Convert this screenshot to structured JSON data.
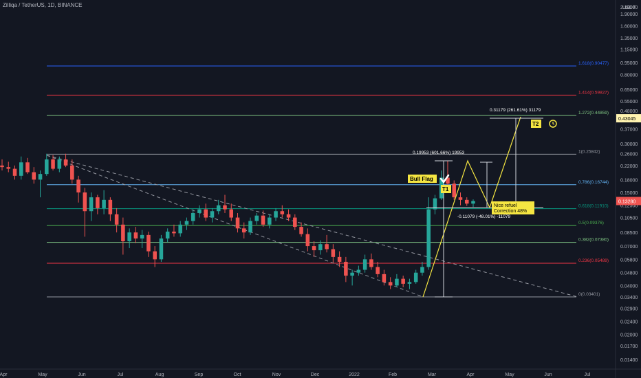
{
  "header": {
    "symbol": "Zilliqa / TetherUS",
    "interval": "1D",
    "exchange": "BINANCE"
  },
  "colors": {
    "background": "#131722",
    "up": "#26a69a",
    "down": "#ef5350",
    "axis_text": "#b2b5be",
    "trend": "#9598a1",
    "annotation": "#f5e642",
    "white": "#d1d4dc"
  },
  "chart_data": {
    "type": "candlestick",
    "y_scale": "log",
    "y_axis_unit": "USDT",
    "y_ticks": [
      "2.10000",
      "1.90000",
      "1.60000",
      "1.35000",
      "1.15000",
      "0.95000",
      "0.80000",
      "0.65000",
      "0.55000",
      "0.48000",
      "0.37000",
      "0.30000",
      "0.26000",
      "0.22000",
      "0.18000",
      "0.15000",
      "0.12500",
      "0.10500",
      "0.08500",
      "0.07000",
      "0.05800",
      "0.04800",
      "0.04000",
      "0.03400",
      "0.02900",
      "0.02400",
      "0.02000",
      "0.01700",
      "0.01400"
    ],
    "x_ticks": [
      "Apr",
      "May",
      "Jun",
      "Jul",
      "Aug",
      "Sep",
      "Oct",
      "Nov",
      "Dec",
      "2022",
      "Feb",
      "Mar",
      "Apr",
      "May",
      "Jun",
      "Jul"
    ],
    "current_price": "0.13280",
    "price_tag_level": "0.43045",
    "fib_levels": [
      {
        "label": "1.618(0.90477)",
        "value": 0.90477,
        "color": "#2962ff"
      },
      {
        "label": "1.414(0.59827)",
        "value": 0.59827,
        "color": "#f23645"
      },
      {
        "label": "1.272(0.44859)",
        "value": 0.44859,
        "color": "#81c784"
      },
      {
        "label": "1(0.25842)",
        "value": 0.25842,
        "color": "#9598a1"
      },
      {
        "label": "0.786(0.16744)",
        "value": 0.16744,
        "color": "#64b5f6"
      },
      {
        "label": "0.618(0.11910)",
        "value": 0.1191,
        "color": "#089981"
      },
      {
        "label": "0.5(0.09376)",
        "value": 0.09376,
        "color": "#4caf50"
      },
      {
        "label": "0.382(0.07380)",
        "value": 0.0738,
        "color": "#81c784"
      },
      {
        "label": "0.236(0.05489)",
        "value": 0.05489,
        "color": "#f23645"
      },
      {
        "label": "0(0.03401)",
        "value": 0.03401,
        "color": "#9598a1"
      }
    ],
    "annotations": {
      "bull_flag": "Bull Flag",
      "t1": "T1",
      "t2": "T2",
      "refuel_line1": "Nice refuel",
      "refuel_line2": "Correction 48%",
      "measure_up": "0.19953 (601.66%) 19953",
      "measure_down": "-0.11079 (-48.01%) -11079",
      "measure_target": "0.31179 (261.61%) 31179"
    },
    "candles": [
      [
        0.22,
        0.24,
        0.205,
        0.215
      ],
      [
        0.215,
        0.232,
        0.2,
        0.21
      ],
      [
        0.21,
        0.22,
        0.18,
        0.19
      ],
      [
        0.19,
        0.25,
        0.18,
        0.23
      ],
      [
        0.23,
        0.245,
        0.195,
        0.2
      ],
      [
        0.2,
        0.215,
        0.17,
        0.18
      ],
      [
        0.18,
        0.205,
        0.14,
        0.195
      ],
      [
        0.195,
        0.26,
        0.19,
        0.24
      ],
      [
        0.24,
        0.255,
        0.205,
        0.21
      ],
      [
        0.21,
        0.25,
        0.2,
        0.24
      ],
      [
        0.24,
        0.26,
        0.215,
        0.22
      ],
      [
        0.22,
        0.24,
        0.17,
        0.18
      ],
      [
        0.18,
        0.19,
        0.13,
        0.15
      ],
      [
        0.15,
        0.16,
        0.08,
        0.115
      ],
      [
        0.115,
        0.15,
        0.1,
        0.14
      ],
      [
        0.14,
        0.145,
        0.11,
        0.12
      ],
      [
        0.12,
        0.155,
        0.11,
        0.135
      ],
      [
        0.135,
        0.14,
        0.1,
        0.11
      ],
      [
        0.11,
        0.12,
        0.085,
        0.095
      ],
      [
        0.095,
        0.105,
        0.062,
        0.075
      ],
      [
        0.075,
        0.09,
        0.068,
        0.085
      ],
      [
        0.085,
        0.092,
        0.073,
        0.078
      ],
      [
        0.078,
        0.088,
        0.068,
        0.082
      ],
      [
        0.082,
        0.086,
        0.06,
        0.065
      ],
      [
        0.065,
        0.07,
        0.052,
        0.058
      ],
      [
        0.058,
        0.082,
        0.056,
        0.078
      ],
      [
        0.078,
        0.09,
        0.074,
        0.086
      ],
      [
        0.086,
        0.095,
        0.08,
        0.084
      ],
      [
        0.084,
        0.1,
        0.08,
        0.095
      ],
      [
        0.095,
        0.105,
        0.088,
        0.1
      ],
      [
        0.1,
        0.118,
        0.095,
        0.112
      ],
      [
        0.112,
        0.125,
        0.105,
        0.118
      ],
      [
        0.118,
        0.128,
        0.1,
        0.105
      ],
      [
        0.105,
        0.12,
        0.098,
        0.115
      ],
      [
        0.115,
        0.135,
        0.11,
        0.125
      ],
      [
        0.125,
        0.145,
        0.112,
        0.118
      ],
      [
        0.118,
        0.128,
        0.1,
        0.105
      ],
      [
        0.105,
        0.112,
        0.085,
        0.09
      ],
      [
        0.09,
        0.098,
        0.078,
        0.085
      ],
      [
        0.085,
        0.105,
        0.082,
        0.1
      ],
      [
        0.1,
        0.112,
        0.095,
        0.108
      ],
      [
        0.108,
        0.116,
        0.092,
        0.095
      ],
      [
        0.095,
        0.11,
        0.09,
        0.105
      ],
      [
        0.105,
        0.12,
        0.1,
        0.115
      ],
      [
        0.115,
        0.125,
        0.105,
        0.11
      ],
      [
        0.11,
        0.118,
        0.1,
        0.105
      ],
      [
        0.105,
        0.11,
        0.088,
        0.092
      ],
      [
        0.092,
        0.098,
        0.08,
        0.083
      ],
      [
        0.083,
        0.09,
        0.065,
        0.07
      ],
      [
        0.07,
        0.075,
        0.06,
        0.066
      ],
      [
        0.066,
        0.076,
        0.062,
        0.072
      ],
      [
        0.072,
        0.082,
        0.064,
        0.067
      ],
      [
        0.067,
        0.072,
        0.055,
        0.06
      ],
      [
        0.06,
        0.065,
        0.052,
        0.056
      ],
      [
        0.056,
        0.06,
        0.042,
        0.046
      ],
      [
        0.046,
        0.05,
        0.04,
        0.048
      ],
      [
        0.048,
        0.053,
        0.046,
        0.05
      ],
      [
        0.05,
        0.062,
        0.048,
        0.058
      ],
      [
        0.058,
        0.063,
        0.05,
        0.052
      ],
      [
        0.052,
        0.056,
        0.045,
        0.047
      ],
      [
        0.047,
        0.05,
        0.04,
        0.042
      ],
      [
        0.042,
        0.045,
        0.038,
        0.04
      ],
      [
        0.04,
        0.047,
        0.039,
        0.044
      ],
      [
        0.044,
        0.046,
        0.039,
        0.041
      ],
      [
        0.041,
        0.044,
        0.038,
        0.042
      ],
      [
        0.042,
        0.05,
        0.041,
        0.048
      ],
      [
        0.048,
        0.056,
        0.046,
        0.052
      ],
      [
        0.052,
        0.14,
        0.05,
        0.118
      ],
      [
        0.118,
        0.145,
        0.11,
        0.138
      ],
      [
        0.138,
        0.205,
        0.135,
        0.185
      ],
      [
        0.185,
        0.235,
        0.165,
        0.17
      ],
      [
        0.17,
        0.178,
        0.135,
        0.14
      ],
      [
        0.14,
        0.15,
        0.125,
        0.135
      ],
      [
        0.135,
        0.14,
        0.124,
        0.128
      ],
      [
        0.128,
        0.136,
        0.122,
        0.1328
      ]
    ]
  }
}
